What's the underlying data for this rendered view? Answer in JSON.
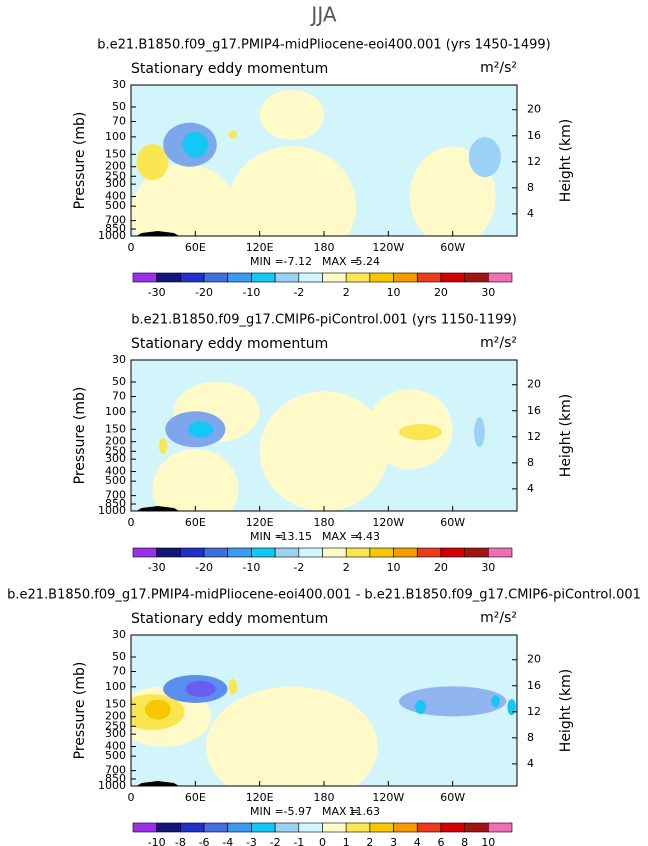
{
  "figure_title": "JJA",
  "chart_data": [
    {
      "type": "contour",
      "title": "b.e21.B1850.f09_g17.PMIP4-midPliocene-eoi400.001 (yrs 1450-1499)",
      "left_label": "Stationary eddy momentum",
      "right_label": "m²/s²",
      "ylabel": "Pressure (mb)",
      "y2label": "Height (km)",
      "xlim": [
        0,
        360
      ],
      "xticks": [
        0,
        {
          "value": 60,
          "label": "60E"
        },
        {
          "value": 120,
          "label": "120E"
        },
        180,
        {
          "value": 240,
          "label": "120W"
        },
        {
          "value": 300,
          "label": "60W"
        }
      ],
      "ylim": [
        1000,
        30
      ],
      "yscale": "log",
      "yticks": [
        1000,
        850,
        700,
        500,
        400,
        300,
        250,
        200,
        150,
        100,
        70,
        50,
        30
      ],
      "y2lim": [
        0.6,
        23.8
      ],
      "y2ticks": [
        4,
        8,
        12,
        16,
        20
      ],
      "min_label": "MIN =",
      "min": -7.12,
      "max_label": "MAX =",
      "max": 5.24,
      "levels": [
        -30,
        -20,
        -10,
        -2,
        2,
        10,
        20,
        30
      ],
      "colors": [
        "#9b30e8",
        "#14147a",
        "#2030c8",
        "#4070e0",
        "#3c9bf0",
        "#14c8f5",
        "#9ad2f5",
        "#d2f5fc",
        "#fffac8",
        "#fae650",
        "#f5c800",
        "#f59b00",
        "#eb3c1e",
        "#d20000",
        "#a01414",
        "#f06eb4"
      ]
    },
    {
      "type": "contour",
      "title": "b.e21.B1850.f09_g17.CMIP6-piControl.001 (yrs 1150-1199)",
      "left_label": "Stationary eddy momentum",
      "right_label": "m²/s²",
      "ylabel": "Pressure (mb)",
      "y2label": "Height (km)",
      "xlim": [
        0,
        360
      ],
      "xticks": [
        0,
        {
          "value": 60,
          "label": "60E"
        },
        {
          "value": 120,
          "label": "120E"
        },
        180,
        {
          "value": 240,
          "label": "120W"
        },
        {
          "value": 300,
          "label": "60W"
        }
      ],
      "ylim": [
        1000,
        30
      ],
      "yscale": "log",
      "yticks": [
        1000,
        850,
        700,
        500,
        400,
        300,
        250,
        200,
        150,
        100,
        70,
        50,
        30
      ],
      "y2lim": [
        0.6,
        23.8
      ],
      "y2ticks": [
        4,
        8,
        12,
        16,
        20
      ],
      "min_label": "MIN =",
      "min": -13.15,
      "max_label": "MAX =",
      "max": 4.43,
      "levels": [
        -30,
        -20,
        -10,
        -2,
        2,
        10,
        20,
        30
      ],
      "colors": [
        "#9b30e8",
        "#14147a",
        "#2030c8",
        "#4070e0",
        "#3c9bf0",
        "#14c8f5",
        "#9ad2f5",
        "#d2f5fc",
        "#fffac8",
        "#fae650",
        "#f5c800",
        "#f59b00",
        "#eb3c1e",
        "#d20000",
        "#a01414",
        "#f06eb4"
      ]
    },
    {
      "type": "contour",
      "title": "b.e21.B1850.f09_g17.PMIP4-midPliocene-eoi400.001 - b.e21.B1850.f09_g17.CMIP6-piControl.001",
      "left_label": "Stationary eddy momentum",
      "right_label": "m²/s²",
      "ylabel": "Pressure (mb)",
      "y2label": "Height (km)",
      "xlim": [
        0,
        360
      ],
      "xticks": [
        0,
        {
          "value": 60,
          "label": "60E"
        },
        {
          "value": 120,
          "label": "120E"
        },
        180,
        {
          "value": 240,
          "label": "120W"
        },
        {
          "value": 300,
          "label": "60W"
        }
      ],
      "ylim": [
        1000,
        30
      ],
      "yscale": "log",
      "yticks": [
        1000,
        850,
        700,
        500,
        400,
        300,
        250,
        200,
        150,
        100,
        70,
        50,
        30
      ],
      "y2lim": [
        0.6,
        23.8
      ],
      "y2ticks": [
        4,
        8,
        12,
        16,
        20
      ],
      "min_label": "MIN =",
      "min": -5.97,
      "max_label": "MAX =",
      "max": 11.63,
      "levels": [
        -10,
        -8,
        -6,
        -4,
        -3,
        -2,
        -1,
        0,
        1,
        2,
        3,
        4,
        6,
        8,
        10
      ],
      "colors": [
        "#9b30e8",
        "#14147a",
        "#2030c8",
        "#4070e0",
        "#3c9bf0",
        "#14c8f5",
        "#9ad2f5",
        "#d2f5fc",
        "#fffac8",
        "#fae650",
        "#f5c800",
        "#f59b00",
        "#eb3c1e",
        "#d20000",
        "#a01414",
        "#f06eb4"
      ]
    }
  ]
}
